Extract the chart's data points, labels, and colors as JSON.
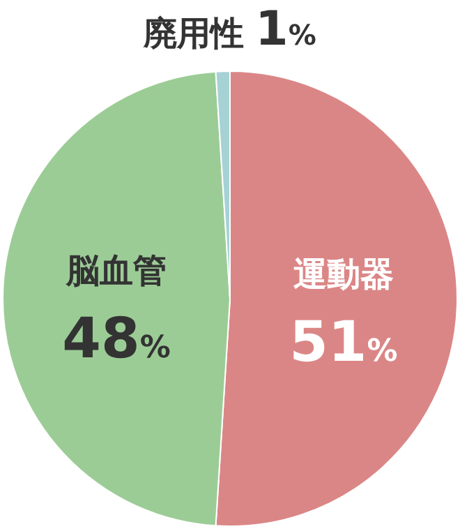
{
  "chart_data": {
    "type": "pie",
    "categories": [
      "運動器",
      "脳血管",
      "廃用性"
    ],
    "values": [
      51,
      48,
      1
    ],
    "value_labels": [
      "51%",
      "48%",
      "1%"
    ],
    "colors": [
      "#db8686",
      "#9ccc96",
      "#a6d2d6"
    ]
  }
}
